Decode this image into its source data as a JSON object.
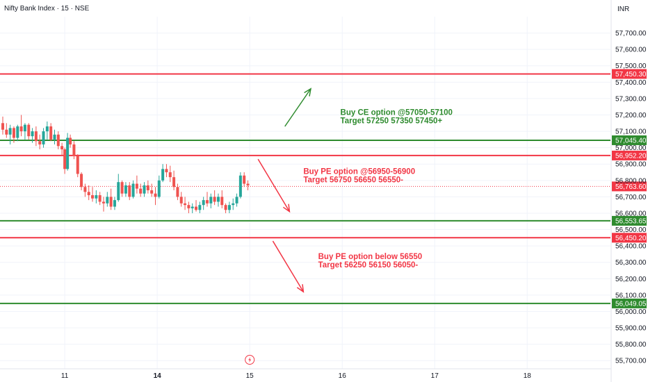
{
  "chart_data": {
    "type": "candlestick",
    "title": "Nifty Bank Index · 15 · NSE",
    "currency": "INR",
    "colors": {
      "up": "#26a69a",
      "down": "#ef5350",
      "support": "#2e8b2e",
      "resistance": "#f23645",
      "grid": "#f0f3fa",
      "text": "#131722"
    },
    "ylim": [
      55650,
      57800
    ],
    "xlim": [
      0,
      66
    ],
    "y_ticks": [
      "55,700.00",
      "55,800.00",
      "55,900.00",
      "56,000.00",
      "56,100.00",
      "56,200.00",
      "56,300.00",
      "56,400.00",
      "56,500.00",
      "56,600.00",
      "56,700.00",
      "56,800.00",
      "56,900.00",
      "57,000.00",
      "57,100.00",
      "57,200.00",
      "57,300.00",
      "57,400.00",
      "57,500.00",
      "57,600.00",
      "57,700.00"
    ],
    "y_tick_values": [
      55700,
      55800,
      55900,
      56000,
      56100,
      56200,
      56300,
      56400,
      56500,
      56600,
      56700,
      56800,
      56900,
      57000,
      57100,
      57200,
      57300,
      57400,
      57500,
      57600,
      57700
    ],
    "x_ticks": [
      {
        "label": "11",
        "x": 7,
        "bold": false
      },
      {
        "label": "14",
        "x": 17,
        "bold": true
      },
      {
        "label": "15",
        "x": 27,
        "bold": false
      },
      {
        "label": "16",
        "x": 37,
        "bold": false
      },
      {
        "label": "17",
        "x": 47,
        "bold": false
      },
      {
        "label": "18",
        "x": 57,
        "bold": false
      }
    ],
    "levels": [
      {
        "value": 57450.3,
        "label": "57,450.30",
        "kind": "resistance"
      },
      {
        "value": 57045.4,
        "label": "57,045.40",
        "kind": "support"
      },
      {
        "value": 56952.2,
        "label": "56,952.20",
        "kind": "resistance"
      },
      {
        "value": 56553.65,
        "label": "56,553.65",
        "kind": "support"
      },
      {
        "value": 56450.2,
        "label": "56,450.20",
        "kind": "resistance"
      },
      {
        "value": 56049.05,
        "label": "56,049.05",
        "kind": "support"
      }
    ],
    "last_price": {
      "value": 56763.6,
      "label": "56,763.60"
    },
    "candles": [
      {
        "x": 0.3,
        "o": 57150,
        "h": 57190,
        "l": 57080,
        "c": 57110
      },
      {
        "x": 0.7,
        "o": 57110,
        "h": 57150,
        "l": 57060,
        "c": 57080
      },
      {
        "x": 1.1,
        "o": 57080,
        "h": 57140,
        "l": 57020,
        "c": 57120
      },
      {
        "x": 1.5,
        "o": 57120,
        "h": 57130,
        "l": 57030,
        "c": 57060
      },
      {
        "x": 1.9,
        "o": 57060,
        "h": 57140,
        "l": 57040,
        "c": 57130
      },
      {
        "x": 2.3,
        "o": 57130,
        "h": 57200,
        "l": 57070,
        "c": 57100
      },
      {
        "x": 2.7,
        "o": 57100,
        "h": 57150,
        "l": 57050,
        "c": 57140
      },
      {
        "x": 3.1,
        "o": 57140,
        "h": 57150,
        "l": 57050,
        "c": 57070
      },
      {
        "x": 3.5,
        "o": 57070,
        "h": 57120,
        "l": 57030,
        "c": 57100
      },
      {
        "x": 3.9,
        "o": 57100,
        "h": 57130,
        "l": 57010,
        "c": 57040
      },
      {
        "x": 4.3,
        "o": 57040,
        "h": 57080,
        "l": 56990,
        "c": 57020
      },
      {
        "x": 4.7,
        "o": 57020,
        "h": 57120,
        "l": 57000,
        "c": 57100
      },
      {
        "x": 5.1,
        "o": 57100,
        "h": 57160,
        "l": 57050,
        "c": 57130
      },
      {
        "x": 5.5,
        "o": 57130,
        "h": 57150,
        "l": 57040,
        "c": 57050
      },
      {
        "x": 5.9,
        "o": 57050,
        "h": 57110,
        "l": 57020,
        "c": 57080
      },
      {
        "x": 6.3,
        "o": 57080,
        "h": 57100,
        "l": 56990,
        "c": 57010
      },
      {
        "x": 6.7,
        "o": 57010,
        "h": 57030,
        "l": 56950,
        "c": 56990
      },
      {
        "x": 7.0,
        "o": 56990,
        "h": 57000,
        "l": 56840,
        "c": 56870
      },
      {
        "x": 7.3,
        "o": 56870,
        "h": 57090,
        "l": 56860,
        "c": 57060
      },
      {
        "x": 7.6,
        "o": 57060,
        "h": 57080,
        "l": 57000,
        "c": 57020
      },
      {
        "x": 8.0,
        "o": 57020,
        "h": 57040,
        "l": 56930,
        "c": 56950
      },
      {
        "x": 8.4,
        "o": 56950,
        "h": 56960,
        "l": 56820,
        "c": 56840
      },
      {
        "x": 8.8,
        "o": 56840,
        "h": 56850,
        "l": 56740,
        "c": 56760
      },
      {
        "x": 9.2,
        "o": 56760,
        "h": 56780,
        "l": 56700,
        "c": 56730
      },
      {
        "x": 9.6,
        "o": 56730,
        "h": 56770,
        "l": 56680,
        "c": 56710
      },
      {
        "x": 10.0,
        "o": 56710,
        "h": 56760,
        "l": 56670,
        "c": 56690
      },
      {
        "x": 10.4,
        "o": 56690,
        "h": 56740,
        "l": 56660,
        "c": 56710
      },
      {
        "x": 10.8,
        "o": 56710,
        "h": 56730,
        "l": 56650,
        "c": 56670
      },
      {
        "x": 11.2,
        "o": 56670,
        "h": 56700,
        "l": 56610,
        "c": 56660
      },
      {
        "x": 11.6,
        "o": 56660,
        "h": 56730,
        "l": 56640,
        "c": 56700
      },
      {
        "x": 12.0,
        "o": 56700,
        "h": 56750,
        "l": 56620,
        "c": 56640
      },
      {
        "x": 12.4,
        "o": 56640,
        "h": 56700,
        "l": 56620,
        "c": 56680
      },
      {
        "x": 12.8,
        "o": 56680,
        "h": 56840,
        "l": 56670,
        "c": 56790
      },
      {
        "x": 13.2,
        "o": 56790,
        "h": 56800,
        "l": 56700,
        "c": 56720
      },
      {
        "x": 13.6,
        "o": 56720,
        "h": 56790,
        "l": 56700,
        "c": 56770
      },
      {
        "x": 14.0,
        "o": 56770,
        "h": 56790,
        "l": 56680,
        "c": 56700
      },
      {
        "x": 14.4,
        "o": 56700,
        "h": 56800,
        "l": 56690,
        "c": 56780
      },
      {
        "x": 14.8,
        "o": 56780,
        "h": 56830,
        "l": 56720,
        "c": 56750
      },
      {
        "x": 15.2,
        "o": 56750,
        "h": 56780,
        "l": 56700,
        "c": 56720
      },
      {
        "x": 15.6,
        "o": 56720,
        "h": 56790,
        "l": 56700,
        "c": 56770
      },
      {
        "x": 16.0,
        "o": 56770,
        "h": 56800,
        "l": 56720,
        "c": 56740
      },
      {
        "x": 16.4,
        "o": 56740,
        "h": 56780,
        "l": 56700,
        "c": 56720
      },
      {
        "x": 16.8,
        "o": 56720,
        "h": 56760,
        "l": 56650,
        "c": 56700
      },
      {
        "x": 17.2,
        "o": 56700,
        "h": 56830,
        "l": 56690,
        "c": 56800
      },
      {
        "x": 17.6,
        "o": 56800,
        "h": 56900,
        "l": 56790,
        "c": 56870
      },
      {
        "x": 18.0,
        "o": 56870,
        "h": 56900,
        "l": 56820,
        "c": 56850
      },
      {
        "x": 18.4,
        "o": 56850,
        "h": 56890,
        "l": 56790,
        "c": 56820
      },
      {
        "x": 18.8,
        "o": 56820,
        "h": 56860,
        "l": 56740,
        "c": 56760
      },
      {
        "x": 19.2,
        "o": 56760,
        "h": 56780,
        "l": 56680,
        "c": 56700
      },
      {
        "x": 19.6,
        "o": 56700,
        "h": 56730,
        "l": 56640,
        "c": 56660
      },
      {
        "x": 20.0,
        "o": 56660,
        "h": 56700,
        "l": 56620,
        "c": 56650
      },
      {
        "x": 20.4,
        "o": 56650,
        "h": 56670,
        "l": 56600,
        "c": 56630
      },
      {
        "x": 20.8,
        "o": 56630,
        "h": 56660,
        "l": 56600,
        "c": 56640
      },
      {
        "x": 21.2,
        "o": 56640,
        "h": 56680,
        "l": 56610,
        "c": 56620
      },
      {
        "x": 21.6,
        "o": 56620,
        "h": 56670,
        "l": 56600,
        "c": 56650
      },
      {
        "x": 22.0,
        "o": 56650,
        "h": 56700,
        "l": 56620,
        "c": 56680
      },
      {
        "x": 22.4,
        "o": 56680,
        "h": 56730,
        "l": 56640,
        "c": 56660
      },
      {
        "x": 22.8,
        "o": 56660,
        "h": 56720,
        "l": 56630,
        "c": 56700
      },
      {
        "x": 23.2,
        "o": 56700,
        "h": 56740,
        "l": 56650,
        "c": 56670
      },
      {
        "x": 23.6,
        "o": 56670,
        "h": 56720,
        "l": 56640,
        "c": 56700
      },
      {
        "x": 24.0,
        "o": 56700,
        "h": 56740,
        "l": 56630,
        "c": 56650
      },
      {
        "x": 24.4,
        "o": 56650,
        "h": 56660,
        "l": 56600,
        "c": 56620
      },
      {
        "x": 24.8,
        "o": 56620,
        "h": 56670,
        "l": 56600,
        "c": 56650
      },
      {
        "x": 25.2,
        "o": 56650,
        "h": 56690,
        "l": 56620,
        "c": 56660
      },
      {
        "x": 25.6,
        "o": 56660,
        "h": 56720,
        "l": 56640,
        "c": 56700
      },
      {
        "x": 26.0,
        "o": 56700,
        "h": 56850,
        "l": 56690,
        "c": 56830
      },
      {
        "x": 26.4,
        "o": 56830,
        "h": 56850,
        "l": 56760,
        "c": 56780
      },
      {
        "x": 26.8,
        "o": 56780,
        "h": 56800,
        "l": 56740,
        "c": 56770
      }
    ],
    "annotations": [
      {
        "lines": [
          "Buy CE option @57050-57100",
          "Target 57250 57350 57450+"
        ],
        "color": "#2e8b2e",
        "x": 36.8,
        "y": 57200
      },
      {
        "lines": [
          "Buy PE option @56950-56900",
          "Target 56750 56650 56550-"
        ],
        "color": "#f23645",
        "x": 32.8,
        "y": 56840
      },
      {
        "lines": [
          "Buy PE option below 56550",
          "Target 56250 56150 56050-"
        ],
        "color": "#f23645",
        "x": 34.4,
        "y": 56320
      }
    ],
    "arrows": [
      {
        "from": [
          30.8,
          57130
        ],
        "to": [
          33.6,
          57360
        ],
        "color": "#2e8b2e"
      },
      {
        "from": [
          27.9,
          56930
        ],
        "to": [
          31.3,
          56610
        ],
        "color": "#f23645"
      },
      {
        "from": [
          29.5,
          56430
        ],
        "to": [
          32.8,
          56120
        ],
        "color": "#f23645"
      }
    ]
  }
}
